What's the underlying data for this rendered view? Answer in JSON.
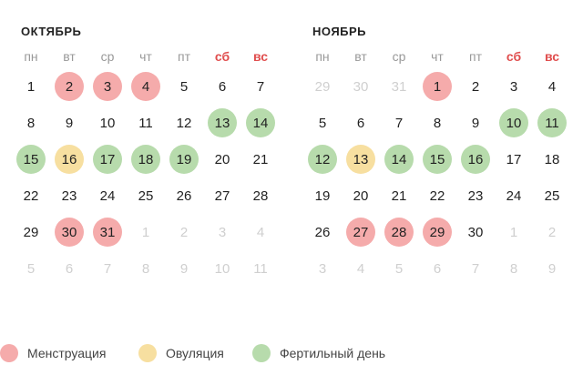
{
  "weekdays": [
    "пн",
    "вт",
    "ср",
    "чт",
    "пт",
    "сб",
    "вс"
  ],
  "colors": {
    "menstruation": "#f5abab",
    "ovulation": "#f7dfa0",
    "fertile": "#b7dbac",
    "weekend": "#e04e4e",
    "other_month": "#cfcfcf"
  },
  "months": [
    {
      "title": "ОКТЯБРЬ",
      "weeks": [
        [
          {
            "d": "1"
          },
          {
            "d": "2",
            "t": "menstr"
          },
          {
            "d": "3",
            "t": "menstr"
          },
          {
            "d": "4",
            "t": "menstr"
          },
          {
            "d": "5"
          },
          {
            "d": "6"
          },
          {
            "d": "7"
          }
        ],
        [
          {
            "d": "8"
          },
          {
            "d": "9"
          },
          {
            "d": "10"
          },
          {
            "d": "11"
          },
          {
            "d": "12"
          },
          {
            "d": "13",
            "t": "fert"
          },
          {
            "d": "14",
            "t": "fert"
          }
        ],
        [
          {
            "d": "15",
            "t": "fert"
          },
          {
            "d": "16",
            "t": "ovul"
          },
          {
            "d": "17",
            "t": "fert"
          },
          {
            "d": "18",
            "t": "fert"
          },
          {
            "d": "19",
            "t": "fert"
          },
          {
            "d": "20"
          },
          {
            "d": "21"
          }
        ],
        [
          {
            "d": "22"
          },
          {
            "d": "23"
          },
          {
            "d": "24"
          },
          {
            "d": "25"
          },
          {
            "d": "26"
          },
          {
            "d": "27"
          },
          {
            "d": "28"
          }
        ],
        [
          {
            "d": "29"
          },
          {
            "d": "30",
            "t": "menstr"
          },
          {
            "d": "31",
            "t": "menstr"
          },
          {
            "d": "1",
            "o": true
          },
          {
            "d": "2",
            "o": true
          },
          {
            "d": "3",
            "o": true
          },
          {
            "d": "4",
            "o": true
          }
        ],
        [
          {
            "d": "5",
            "o": true
          },
          {
            "d": "6",
            "o": true
          },
          {
            "d": "7",
            "o": true
          },
          {
            "d": "8",
            "o": true
          },
          {
            "d": "9",
            "o": true
          },
          {
            "d": "10",
            "o": true
          },
          {
            "d": "11",
            "o": true
          }
        ]
      ]
    },
    {
      "title": "НОЯБРЬ",
      "weeks": [
        [
          {
            "d": "29",
            "o": true
          },
          {
            "d": "30",
            "o": true
          },
          {
            "d": "31",
            "o": true
          },
          {
            "d": "1",
            "t": "menstr"
          },
          {
            "d": "2"
          },
          {
            "d": "3"
          },
          {
            "d": "4"
          }
        ],
        [
          {
            "d": "5"
          },
          {
            "d": "6"
          },
          {
            "d": "7"
          },
          {
            "d": "8"
          },
          {
            "d": "9"
          },
          {
            "d": "10",
            "t": "fert"
          },
          {
            "d": "11",
            "t": "fert"
          }
        ],
        [
          {
            "d": "12",
            "t": "fert"
          },
          {
            "d": "13",
            "t": "ovul"
          },
          {
            "d": "14",
            "t": "fert"
          },
          {
            "d": "15",
            "t": "fert"
          },
          {
            "d": "16",
            "t": "fert"
          },
          {
            "d": "17"
          },
          {
            "d": "18"
          }
        ],
        [
          {
            "d": "19"
          },
          {
            "d": "20"
          },
          {
            "d": "21"
          },
          {
            "d": "22"
          },
          {
            "d": "23"
          },
          {
            "d": "24"
          },
          {
            "d": "25"
          }
        ],
        [
          {
            "d": "26"
          },
          {
            "d": "27",
            "t": "menstr"
          },
          {
            "d": "28",
            "t": "menstr"
          },
          {
            "d": "29",
            "t": "menstr"
          },
          {
            "d": "30"
          },
          {
            "d": "1",
            "o": true
          },
          {
            "d": "2",
            "o": true
          }
        ],
        [
          {
            "d": "3",
            "o": true
          },
          {
            "d": "4",
            "o": true
          },
          {
            "d": "5",
            "o": true
          },
          {
            "d": "6",
            "o": true
          },
          {
            "d": "7",
            "o": true
          },
          {
            "d": "8",
            "o": true
          },
          {
            "d": "9",
            "o": true
          }
        ]
      ]
    }
  ],
  "legend": {
    "menstruation": "Менструация",
    "ovulation": "Овуляция",
    "fertile": "Фертильный день"
  }
}
